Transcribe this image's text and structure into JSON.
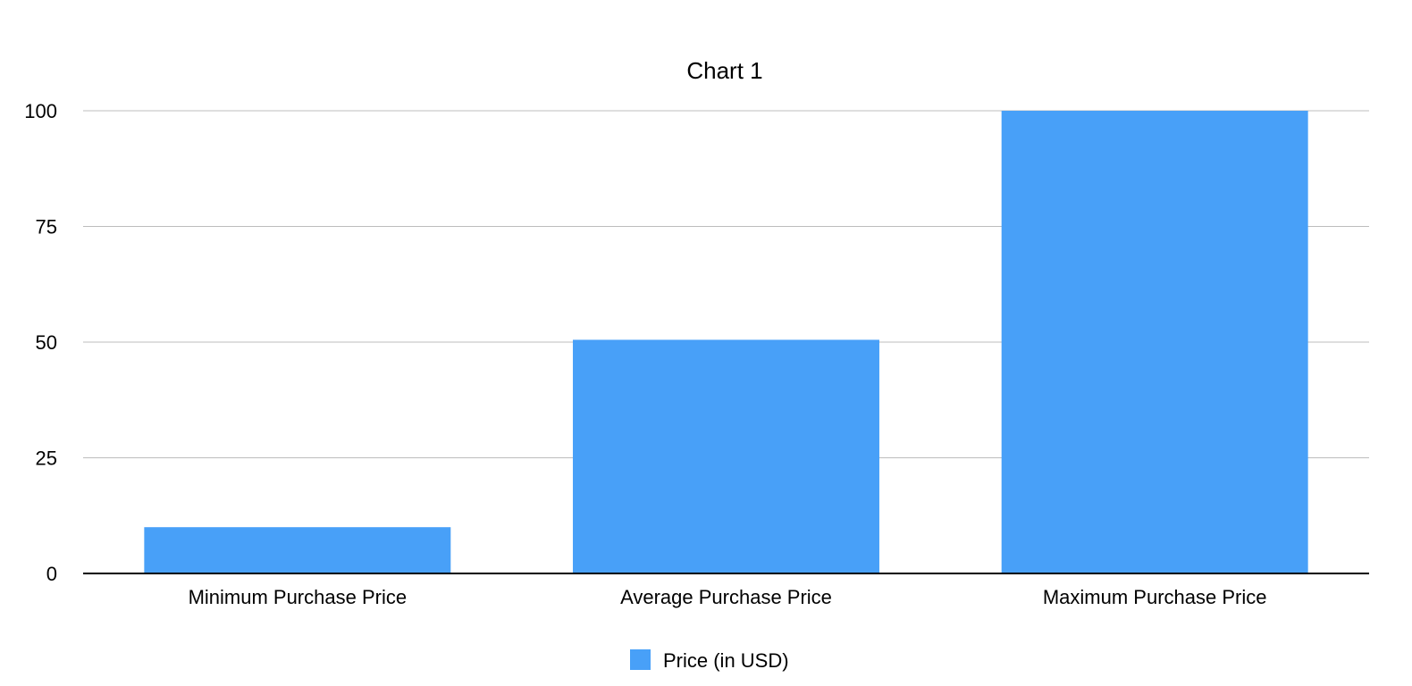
{
  "chart_data": {
    "type": "bar",
    "title": "Chart 1",
    "categories": [
      "Minimum Purchase Price",
      "Average Purchase Price",
      "Maximum Purchase Price"
    ],
    "series": [
      {
        "name": "Price (in USD)",
        "values": [
          10,
          50.5,
          100
        ],
        "color": "#48a0f8"
      }
    ],
    "xlabel": "",
    "ylabel": "",
    "ylim": [
      0,
      100
    ],
    "yticks": [
      "0",
      "25",
      "50",
      "75",
      "100"
    ],
    "grid": true,
    "legend": "bottom-center"
  }
}
